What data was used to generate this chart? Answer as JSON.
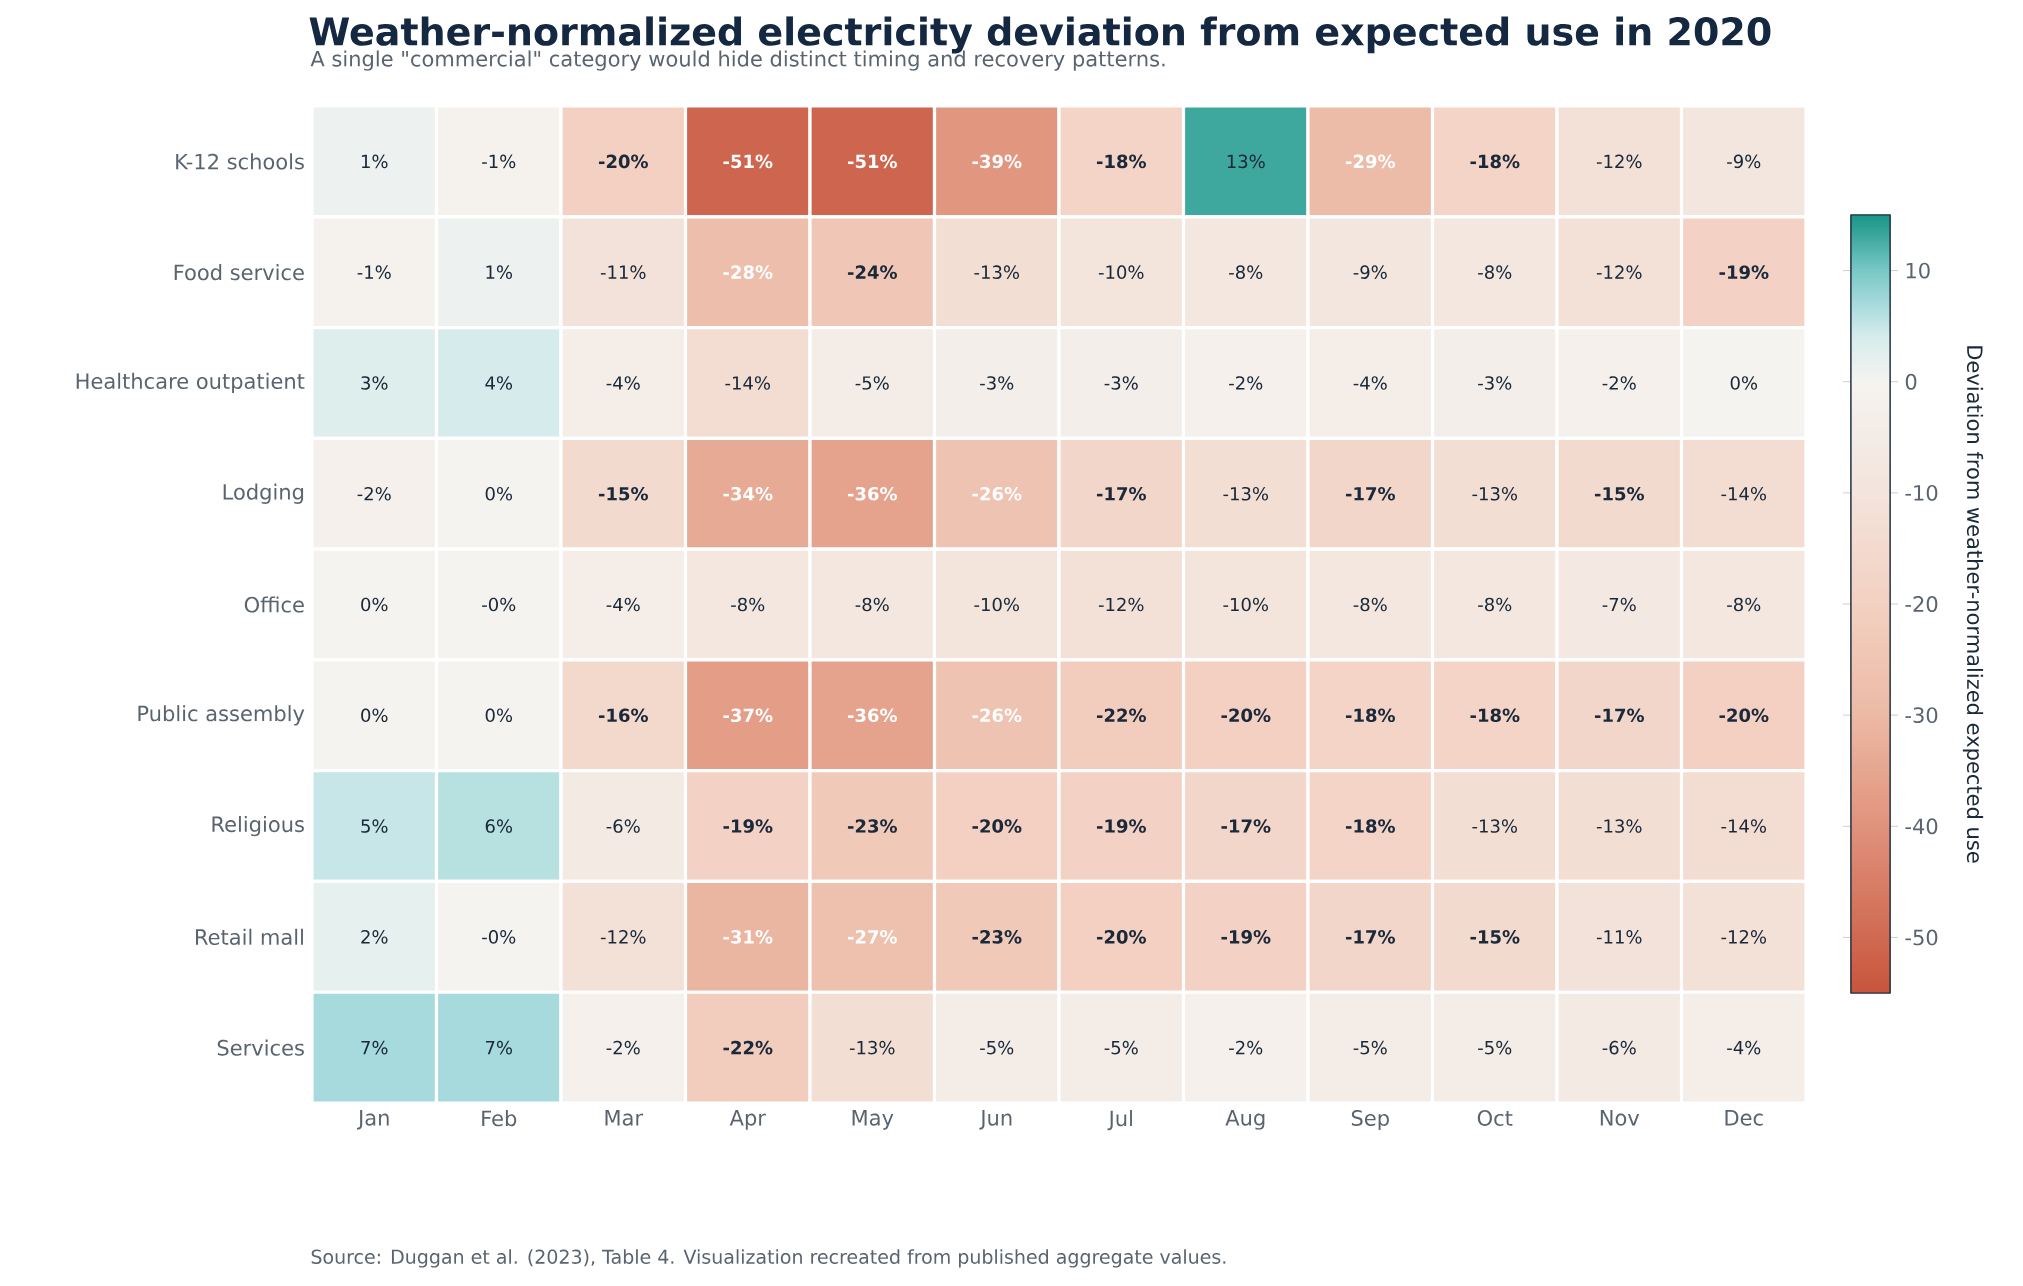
{
  "chart_data": {
    "type": "heatmap",
    "title": "Weather-normalized electricity deviation from expected use in 2020",
    "subtitle": "A single \"commercial\" category would hide distinct timing and recovery patterns.",
    "categories": [
      "Jan",
      "Feb",
      "Mar",
      "Apr",
      "May",
      "Jun",
      "Jul",
      "Aug",
      "Sep",
      "Oct",
      "Nov",
      "Dec"
    ],
    "y_categories": [
      "K-12 schools",
      "Food service",
      "Healthcare outpatient",
      "Lodging",
      "Office",
      "Public assembly",
      "Religious",
      "Retail mall",
      "Services"
    ],
    "cells": [
      [
        1,
        -1,
        -20,
        -51,
        -51,
        -39,
        -18,
        13,
        -29,
        -18,
        -12,
        -9
      ],
      [
        -1,
        1,
        -11,
        -28,
        -24,
        -13,
        -10,
        -8,
        -9,
        -8,
        -12,
        -19
      ],
      [
        3,
        4,
        -4,
        -14,
        -5,
        -3,
        -3,
        -2,
        -4,
        -3,
        -2,
        0
      ],
      [
        -2,
        0,
        -15,
        -34,
        -36,
        -26,
        -17,
        -13,
        -17,
        -13,
        -15,
        -14
      ],
      [
        0,
        0,
        -4,
        -8,
        -8,
        -10,
        -12,
        -10,
        -8,
        -8,
        -7,
        -8
      ],
      [
        0,
        0,
        -16,
        -37,
        -36,
        -26,
        -22,
        -20,
        -18,
        -18,
        -17,
        -20
      ],
      [
        5,
        6,
        -6,
        -19,
        -23,
        -20,
        -19,
        -17,
        -18,
        -13,
        -13,
        -14
      ],
      [
        2,
        0,
        -12,
        -31,
        -27,
        -23,
        -20,
        -19,
        -17,
        -15,
        -11,
        -12
      ],
      [
        7,
        7,
        -2,
        -22,
        -13,
        -5,
        -5,
        -2,
        -5,
        -5,
        -6,
        -4
      ]
    ],
    "cell_labels": [
      [
        "1%",
        "-1%",
        "-20%",
        "-51%",
        "-51%",
        "-39%",
        "-18%",
        "13%",
        "-29%",
        "-18%",
        "-12%",
        "-9%"
      ],
      [
        "-1%",
        "1%",
        "-11%",
        "-28%",
        "-24%",
        "-13%",
        "-10%",
        "-8%",
        "-9%",
        "-8%",
        "-12%",
        "-19%"
      ],
      [
        "3%",
        "4%",
        "-4%",
        "-14%",
        "-5%",
        "-3%",
        "-3%",
        "-2%",
        "-4%",
        "-3%",
        "-2%",
        "0%"
      ],
      [
        "-2%",
        "0%",
        "-15%",
        "-34%",
        "-36%",
        "-26%",
        "-17%",
        "-13%",
        "-17%",
        "-13%",
        "-15%",
        "-14%"
      ],
      [
        "0%",
        "-0%",
        "-4%",
        "-8%",
        "-8%",
        "-10%",
        "-12%",
        "-10%",
        "-8%",
        "-8%",
        "-7%",
        "-8%"
      ],
      [
        "0%",
        "0%",
        "-16%",
        "-37%",
        "-36%",
        "-26%",
        "-22%",
        "-20%",
        "-18%",
        "-18%",
        "-17%",
        "-20%"
      ],
      [
        "5%",
        "6%",
        "-6%",
        "-19%",
        "-23%",
        "-20%",
        "-19%",
        "-17%",
        "-18%",
        "-13%",
        "-13%",
        "-14%"
      ],
      [
        "2%",
        "-0%",
        "-12%",
        "-31%",
        "-27%",
        "-23%",
        "-20%",
        "-19%",
        "-17%",
        "-15%",
        "-11%",
        "-12%"
      ],
      [
        "7%",
        "7%",
        "-2%",
        "-22%",
        "-13%",
        "-5%",
        "-5%",
        "-2%",
        "-5%",
        "-5%",
        "-6%",
        "-4%"
      ]
    ],
    "clim": [
      -55,
      15
    ],
    "cticks": [
      -50,
      -40,
      -30,
      -20,
      -10,
      0,
      10
    ],
    "clabel": "Deviation from weather-normalized expected use",
    "annotations": [
      "Source: Duggan et al. (2023), Table 4. Visualization recreated from published aggregate values."
    ]
  }
}
